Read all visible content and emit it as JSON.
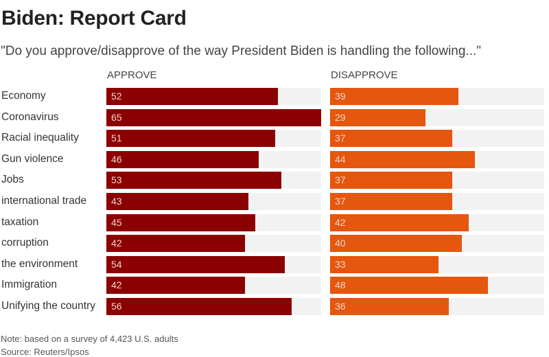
{
  "title": "Biden: Report Card",
  "subtitle": "\"Do you approve/disapprove of the way President Biden is handling the following...\"",
  "note": "Note: based on a survey of 4,423 U.S. adults",
  "source": "Source: Reuters/Ipsos",
  "colors": {
    "approve": "#8b0000",
    "disapprove": "#e5560e",
    "track": "#f2f2f2"
  },
  "chart_data": {
    "type": "bar",
    "orientation": "horizontal",
    "title": "Biden: Report Card",
    "subtitle": "\"Do you approve/disapprove of the way President Biden is handling the following...\"",
    "xlim": [
      0,
      65
    ],
    "grid": false,
    "categories": [
      "Economy",
      "Coronavirus",
      "Racial inequality",
      "Gun violence",
      "Jobs",
      "international trade",
      "taxation",
      "corruption",
      "the environment",
      "Immigration",
      "Unifying the country"
    ],
    "series": [
      {
        "name": "APPROVE",
        "values": [
          52,
          65,
          51,
          46,
          53,
          43,
          45,
          42,
          54,
          42,
          56
        ]
      },
      {
        "name": "DISAPPROVE",
        "values": [
          39,
          29,
          37,
          44,
          37,
          37,
          42,
          40,
          33,
          48,
          36
        ]
      }
    ]
  }
}
